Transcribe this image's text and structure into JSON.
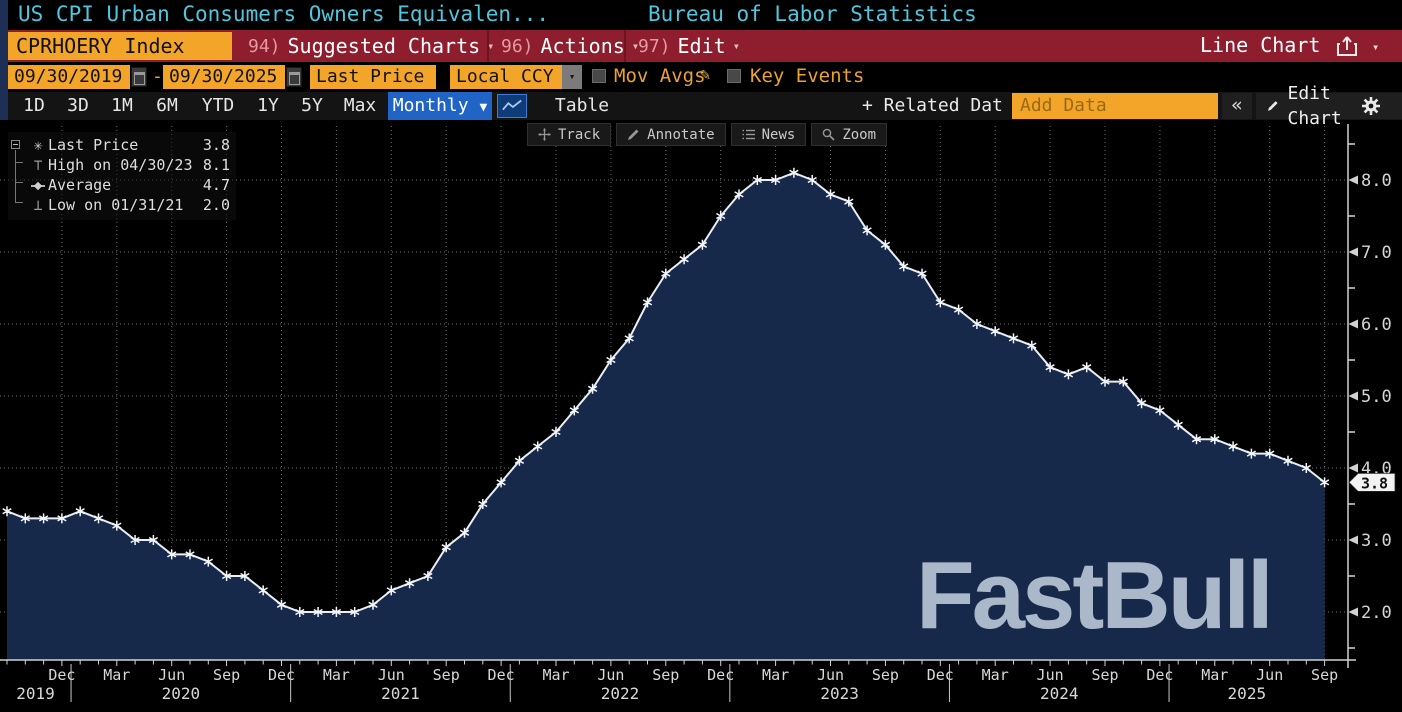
{
  "window": {
    "title_left": "US CPI Urban Consumers Owners Equivalen...",
    "title_right": "Bureau of Labor Statistics"
  },
  "ribbon": {
    "ticker": "CPRHOERY Index",
    "menus": [
      {
        "num": "94)",
        "label": "Suggested Charts"
      },
      {
        "num": "96)",
        "label": "Actions"
      },
      {
        "num": "97)",
        "label": "Edit"
      }
    ],
    "chart_type": "Line Chart"
  },
  "controls": {
    "date_from": "09/30/2019",
    "date_to": "09/30/2025",
    "dash": "-",
    "price_field": "Last Price",
    "currency": "Local CCY",
    "mov_avgs_label": "Mov Avgs",
    "key_events_label": "Key Events"
  },
  "toolbar": {
    "ranges": [
      "1D",
      "3D",
      "1M",
      "6M",
      "YTD",
      "1Y",
      "5Y",
      "Max"
    ],
    "period": "Monthly",
    "table_label": "Table",
    "related_data_label": "+ Related Dat",
    "add_data_placeholder": "Add Data",
    "collapse_label": "«",
    "edit_chart_label": "Edit Chart"
  },
  "plot_toolbar": [
    {
      "icon": "track-icon",
      "label": "Track"
    },
    {
      "icon": "annotate-icon",
      "label": "Annotate"
    },
    {
      "icon": "news-icon",
      "label": "News"
    },
    {
      "icon": "zoom-icon",
      "label": "Zoom"
    }
  ],
  "legend": {
    "rows": [
      {
        "icon": "star",
        "label": "Last Price",
        "value": "3.8"
      },
      {
        "icon": "high",
        "label": "High on 04/30/23",
        "value": "8.1"
      },
      {
        "icon": "avg",
        "label": "Average",
        "value": "4.7"
      },
      {
        "icon": "low",
        "label": "Low on 01/31/21",
        "value": "2.0"
      }
    ]
  },
  "watermark": "FastBull",
  "chart_data": {
    "type": "area",
    "series_name": "Last Price",
    "frequency": "monthly",
    "x_start": "2019-09",
    "x_end": "2025-09",
    "values": [
      3.4,
      3.3,
      3.3,
      3.3,
      3.4,
      3.3,
      3.2,
      3.0,
      3.0,
      2.8,
      2.8,
      2.7,
      2.5,
      2.5,
      2.3,
      2.1,
      2.0,
      2.0,
      2.0,
      2.0,
      2.1,
      2.3,
      2.4,
      2.5,
      2.9,
      3.1,
      3.5,
      3.8,
      4.1,
      4.3,
      4.5,
      4.8,
      5.1,
      5.5,
      5.8,
      6.3,
      6.7,
      6.9,
      7.1,
      7.5,
      7.8,
      8.0,
      8.0,
      8.1,
      8.0,
      7.8,
      7.7,
      7.3,
      7.1,
      6.8,
      6.7,
      6.3,
      6.2,
      6.0,
      5.9,
      5.8,
      5.7,
      5.4,
      5.3,
      5.4,
      5.2,
      5.2,
      4.9,
      4.8,
      4.6,
      4.4,
      4.4,
      4.3,
      4.2,
      4.2,
      4.1,
      4.0,
      3.8
    ],
    "last_price": "3.8",
    "high": "8.1",
    "average": "4.7",
    "low": "2.0",
    "ylim": [
      1.3,
      8.75
    ],
    "y_ticks": [
      {
        "v": 2,
        "label": "2.0"
      },
      {
        "v": 3,
        "label": "3.0"
      },
      {
        "v": 4,
        "label": "4.0"
      },
      {
        "v": 5,
        "label": "5.0"
      },
      {
        "v": 6,
        "label": "6.0"
      },
      {
        "v": 7,
        "label": "7.0"
      },
      {
        "v": 8,
        "label": "8.0"
      }
    ],
    "y_minor_ticks": [
      1.5,
      2.5,
      3.5,
      4.5,
      5.5,
      6.5,
      7.5,
      8.5
    ],
    "x_ticks": [
      {
        "i": 3,
        "label": "Dec"
      },
      {
        "i": 6,
        "label": "Mar"
      },
      {
        "i": 9,
        "label": "Jun"
      },
      {
        "i": 12,
        "label": "Sep"
      },
      {
        "i": 15,
        "label": "Dec"
      },
      {
        "i": 18,
        "label": "Mar"
      },
      {
        "i": 21,
        "label": "Jun"
      },
      {
        "i": 24,
        "label": "Sep"
      },
      {
        "i": 27,
        "label": "Dec"
      },
      {
        "i": 30,
        "label": "Mar"
      },
      {
        "i": 33,
        "label": "Jun"
      },
      {
        "i": 36,
        "label": "Sep"
      },
      {
        "i": 39,
        "label": "Dec"
      },
      {
        "i": 42,
        "label": "Mar"
      },
      {
        "i": 45,
        "label": "Jun"
      },
      {
        "i": 48,
        "label": "Sep"
      },
      {
        "i": 51,
        "label": "Dec"
      },
      {
        "i": 54,
        "label": "Mar"
      },
      {
        "i": 57,
        "label": "Jun"
      },
      {
        "i": 60,
        "label": "Sep"
      },
      {
        "i": 63,
        "label": "Dec"
      },
      {
        "i": 66,
        "label": "Mar"
      },
      {
        "i": 69,
        "label": "Jun"
      },
      {
        "i": 72,
        "label": "Sep"
      }
    ],
    "years": [
      {
        "label": "2019",
        "start_i": 0,
        "end_i": 3
      },
      {
        "label": "2020",
        "start_i": 4,
        "end_i": 15
      },
      {
        "label": "2021",
        "start_i": 16,
        "end_i": 27
      },
      {
        "label": "2022",
        "start_i": 28,
        "end_i": 39
      },
      {
        "label": "2023",
        "start_i": 40,
        "end_i": 51
      },
      {
        "label": "2024",
        "start_i": 52,
        "end_i": 63
      },
      {
        "label": "2025",
        "start_i": 64,
        "end_i": 72
      }
    ],
    "colors": {
      "line": "#e9eef4",
      "fill": "#16294a",
      "grid": "#8d9196",
      "axis": "#d2d2d2",
      "accent_amber": "#f3a529",
      "badge_bg": "#f2f2f2"
    }
  }
}
